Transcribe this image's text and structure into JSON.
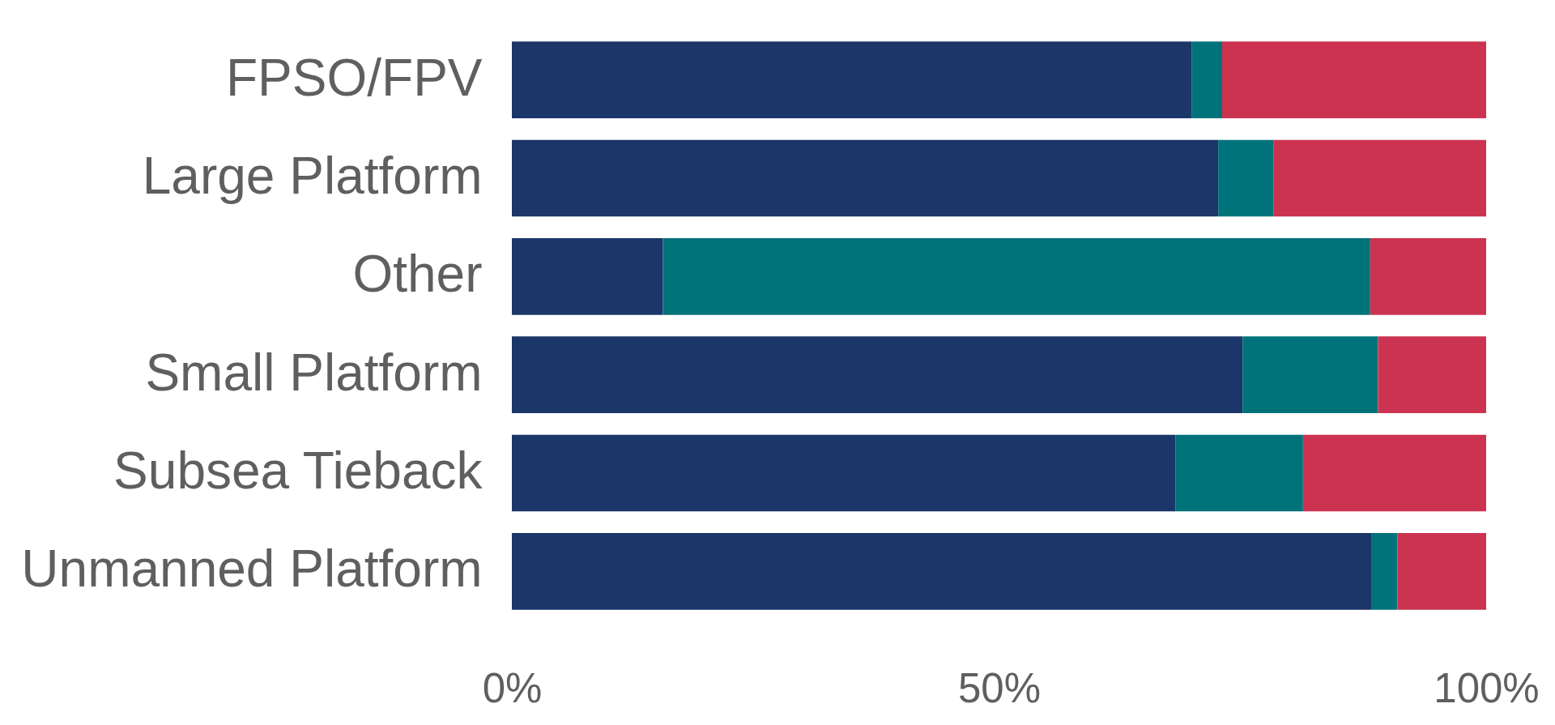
{
  "chart_data": {
    "type": "bar",
    "orientation": "horizontal",
    "stacked": true,
    "categories": [
      "FPSO/FPV",
      "Large Platform",
      "Other",
      "Small Platform",
      "Subsea Tieback",
      "Unmanned Platform"
    ],
    "series": [
      {
        "color": "#1b3668",
        "values": [
          69.8,
          72.5,
          15.5,
          75.0,
          68.1,
          88.2
        ]
      },
      {
        "color": "#00737a",
        "values": [
          3.1,
          5.7,
          72.6,
          13.9,
          13.1,
          2.7
        ]
      },
      {
        "color": "#cc3350",
        "values": [
          27.1,
          21.8,
          11.9,
          11.1,
          18.8,
          9.1
        ]
      }
    ],
    "xlim": [
      0,
      100
    ],
    "xticks": [
      {
        "value": 0,
        "label": "0%"
      },
      {
        "value": 50,
        "label": "50%"
      },
      {
        "value": 100,
        "label": "100%"
      }
    ],
    "grid": false
  }
}
